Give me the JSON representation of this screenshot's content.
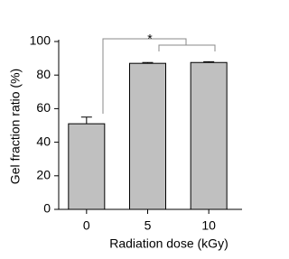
{
  "chart_data": {
    "type": "bar",
    "categories": [
      "0",
      "5",
      "10"
    ],
    "values": [
      51,
      87,
      87.5
    ],
    "errors": [
      4,
      0.5,
      0.5
    ],
    "color": "#c0c0c0",
    "xlabel": "Radiation dose (kGy)",
    "ylabel": "Gel fraction ratio (%)",
    "annotation": "*",
    "ylim": [
      0,
      100
    ],
    "yticks": [
      0,
      20,
      40,
      60,
      80,
      100
    ],
    "grid": false
  }
}
